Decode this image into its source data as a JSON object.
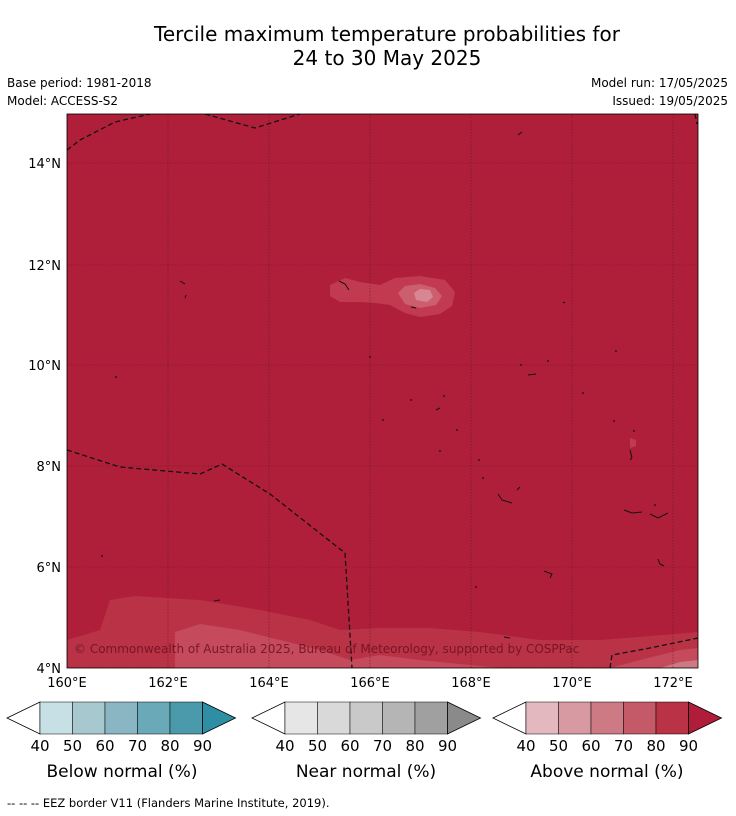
{
  "title_line1": "Tercile maximum temperature probabilities for",
  "title_line2": "24 to 30 May 2025",
  "base_period": "Base period: 1981-2018",
  "model": "Model: ACCESS-S2",
  "model_run": "Model run: 17/05/2025",
  "issued": "Issued: 19/05/2025",
  "copyright": "© Commonwealth of Australia 2025, Bureau of Meteorology, supported by COSPPac",
  "lat_labels": [
    "14°N",
    "12°N",
    "10°N",
    "8°N",
    "6°N",
    "4°N"
  ],
  "lon_labels": [
    "160°E",
    "162°E",
    "164°E",
    "166°E",
    "168°E",
    "170°E",
    "172°E"
  ],
  "colorbars": [
    {
      "label": "Below normal (%)",
      "ticks": [
        "40",
        "50",
        "60",
        "70",
        "80",
        "90"
      ],
      "colors": [
        "#ffffff",
        "#c6e0e6",
        "#a8c8cf",
        "#8ab6c3",
        "#6aaab8",
        "#4a9aab",
        "#2e8ea3"
      ]
    },
    {
      "label": "Near normal (%)",
      "ticks": [
        "40",
        "50",
        "60",
        "70",
        "80",
        "90"
      ],
      "colors": [
        "#ffffff",
        "#e6e6e6",
        "#d9d9d9",
        "#c9c9c9",
        "#b5b5b5",
        "#a0a0a0",
        "#8a8a8a"
      ]
    },
    {
      "label": "Above normal (%)",
      "ticks": [
        "40",
        "50",
        "60",
        "70",
        "80",
        "90"
      ],
      "colors": [
        "#ffffff",
        "#e3b8be",
        "#d89aa2",
        "#ce7a85",
        "#c45a67",
        "#b93245",
        "#b01d3a"
      ]
    }
  ],
  "map_fill_color": "#b01f3a",
  "footnote": "-- -- -- EEZ border V11 (Flanders Marine Institute, 2019)."
}
